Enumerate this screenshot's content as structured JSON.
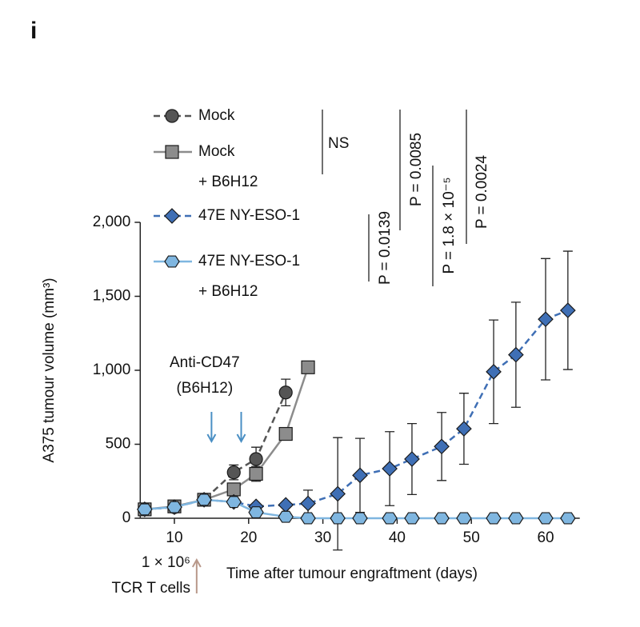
{
  "chart_data": {
    "type": "line",
    "panel_label": "i",
    "x_label": "Time after tumour engraftment (days)",
    "y_label": "A375 tumour volume (mm³)",
    "xlim": [
      5.4,
      64.6
    ],
    "xticks": [
      10,
      20,
      30,
      40,
      50,
      60
    ],
    "ylim": [
      0,
      2000
    ],
    "yticks": [
      0,
      500,
      {
        "value": 1000,
        "label": "1,000"
      },
      {
        "value": 1500,
        "label": "1,500"
      },
      {
        "value": 2000,
        "label": "2,000"
      }
    ],
    "series": [
      {
        "name": "Mock",
        "color": "#555555",
        "marker": "circle",
        "dash": true,
        "x": [
          6,
          10,
          14,
          18,
          21,
          25
        ],
        "values": [
          60,
          75,
          125,
          310,
          400,
          850
        ],
        "errors": [
          null,
          null,
          null,
          50,
          80,
          90
        ]
      },
      {
        "name": "Mock\n+ B6H12",
        "color": "#8c8c8c",
        "marker": "square",
        "dash": false,
        "x": [
          6,
          10,
          14,
          18,
          21,
          25,
          28
        ],
        "values": [
          60,
          80,
          125,
          195,
          300,
          570,
          1020
        ],
        "errors": [
          null,
          null,
          null,
          null,
          50,
          null,
          null
        ]
      },
      {
        "name": "47E NY-ESO-1",
        "color": "#3f6fb5",
        "marker": "diamond",
        "dash": true,
        "x": [
          6,
          10,
          14,
          18,
          21,
          25,
          28,
          32,
          35,
          39,
          42,
          46,
          49,
          53,
          56,
          60,
          63
        ],
        "values": [
          60,
          75,
          125,
          110,
          80,
          90,
          100,
          165,
          290,
          335,
          400,
          485,
          605,
          990,
          1105,
          1345,
          1405
        ],
        "errors": [
          null,
          null,
          null,
          null,
          null,
          null,
          90,
          380,
          250,
          250,
          240,
          230,
          240,
          350,
          355,
          410,
          400
        ]
      },
      {
        "name": "47E NY-ESO-1\n+ B6H12",
        "color": "#7fb6e0",
        "marker": "hexagon",
        "dash": false,
        "x": [
          6,
          10,
          14,
          18,
          21,
          25,
          28,
          32,
          35,
          39,
          42,
          46,
          49,
          53,
          56,
          60,
          63
        ],
        "values": [
          60,
          75,
          125,
          110,
          40,
          10,
          0,
          0,
          0,
          0,
          0,
          0,
          0,
          0,
          0,
          0,
          0
        ],
        "errors": [
          null,
          null,
          null,
          null,
          null,
          null,
          null,
          null,
          null,
          null,
          null,
          null,
          null,
          null,
          null,
          null,
          null
        ]
      }
    ],
    "significance": [
      "NS",
      "P = 0.0139",
      "P = 0.0085",
      "P = 1.8 × 10⁻⁵",
      "P = 0.0024"
    ],
    "treatment_label": "Anti-CD47\n(B6H12)",
    "treatment_days": [
      15,
      19
    ],
    "cells_label": "1 × 10⁶\nTCR T cells",
    "cells_day": 13
  }
}
